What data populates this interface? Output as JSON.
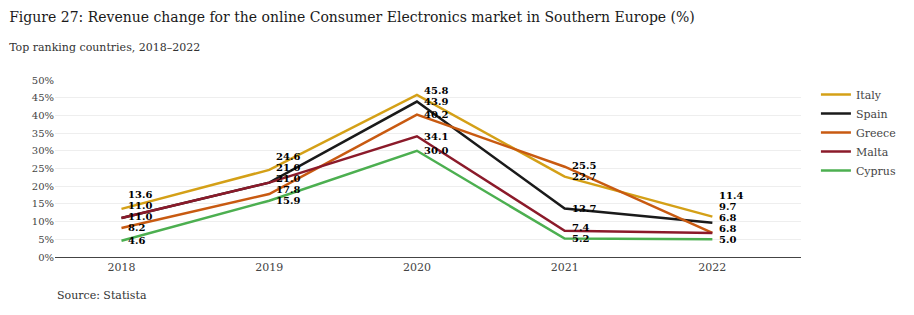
{
  "chart_data": {
    "type": "line",
    "title": "Figure 27: Revenue change for the online Consumer Electronics market in Southern Europe (%)",
    "subtitle": "Top ranking countries, 2018–2022",
    "annotations": [
      "Source: Statista"
    ],
    "x": [
      2018,
      2019,
      2020,
      2021,
      2022
    ],
    "xlim": [
      2017.55,
      2022.6
    ],
    "xticks": [
      2018,
      2019,
      2020,
      2021,
      2022
    ],
    "ylim": [
      0,
      50
    ],
    "yticks": [
      {
        "value": 0,
        "label": "0%"
      },
      {
        "value": 5,
        "label": "5%"
      },
      {
        "value": 10,
        "label": "10%"
      },
      {
        "value": 15,
        "label": "15%"
      },
      {
        "value": 20,
        "label": "20%"
      },
      {
        "value": 25,
        "label": "25%"
      },
      {
        "value": 30,
        "label": "30%"
      },
      {
        "value": 35,
        "label": "35%"
      },
      {
        "value": 40,
        "label": "40%"
      },
      {
        "value": 45,
        "label": "45%"
      },
      {
        "value": 50,
        "label": "50%"
      }
    ],
    "grid": true,
    "legend": "right",
    "data_labels": true,
    "series": [
      {
        "name": "Italy",
        "color": "#D4A017",
        "values": [
          13.6,
          24.6,
          45.8,
          22.7,
          11.4
        ],
        "value_labels": [
          "13.6",
          "24.6",
          "45.8",
          "22.7",
          "11.4"
        ]
      },
      {
        "name": "Spain",
        "color": "#1A1A1A",
        "values": [
          11.0,
          21.0,
          43.9,
          13.7,
          9.7
        ],
        "value_labels": [
          "11.0",
          "21.0",
          "43.9",
          "13.7",
          "9.7"
        ]
      },
      {
        "name": "Greece",
        "color": "#C85A11",
        "values": [
          8.2,
          17.8,
          40.2,
          25.5,
          6.8
        ],
        "value_labels": [
          "8.2",
          "17.8",
          "40.2",
          "25.5",
          "6.8"
        ]
      },
      {
        "name": "Malta",
        "color": "#8B1A2A",
        "values": [
          11.0,
          21.0,
          34.1,
          7.4,
          6.8
        ],
        "value_labels": [
          "11.0",
          "21.0",
          "34.1",
          "7.4",
          "6.8"
        ]
      },
      {
        "name": "Cyprus",
        "color": "#4CAF50",
        "values": [
          4.6,
          15.9,
          30.0,
          5.2,
          5.0
        ],
        "value_labels": [
          "4.6",
          "15.9",
          "30.0",
          "5.2",
          "5.0"
        ]
      }
    ]
  }
}
